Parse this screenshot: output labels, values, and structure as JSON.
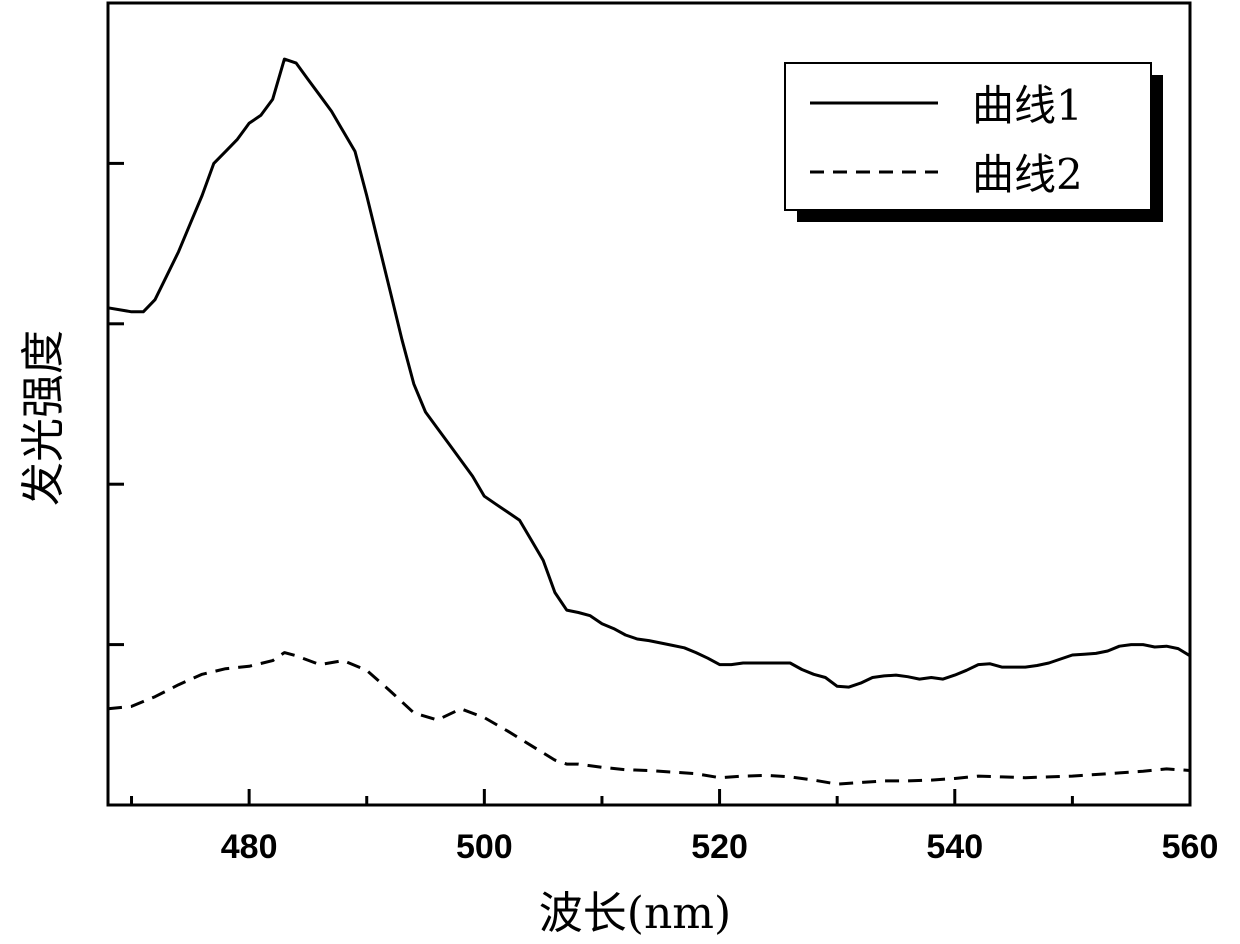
{
  "chart_data": {
    "type": "line",
    "xlabel": "波长(nm)",
    "ylabel": "发光强度",
    "xlim": [
      468,
      560
    ],
    "ylim": [
      0,
      100
    ],
    "x_ticks_major": [
      480,
      500,
      520,
      540,
      560
    ],
    "x_ticks_minor": [
      470,
      490,
      510,
      530,
      550
    ],
    "y_ticks": [
      20,
      40,
      60,
      80,
      100
    ],
    "y_tick_labels_shown": false,
    "grid": false,
    "legend_position": "top-right",
    "series": [
      {
        "name": "曲线1",
        "style": "solid",
        "x": [
          468,
          470,
          471,
          472,
          473,
          474,
          475,
          476,
          477,
          478,
          479,
          480,
          481,
          482,
          483,
          484,
          485,
          486,
          487,
          488,
          489,
          490,
          491,
          492,
          493,
          494,
          495,
          496,
          497,
          498,
          499,
          500,
          501,
          502,
          503,
          504,
          505,
          506,
          507,
          508,
          509,
          510,
          511,
          512,
          513,
          514,
          515,
          516,
          517,
          518,
          519,
          520,
          521,
          522,
          523,
          524,
          525,
          526,
          527,
          528,
          529,
          530,
          531,
          532,
          533,
          534,
          535,
          536,
          537,
          538,
          539,
          540,
          541,
          542,
          543,
          544,
          545,
          546,
          547,
          548,
          549,
          550,
          551,
          552,
          553,
          554,
          555,
          556,
          557,
          558,
          559,
          560
        ],
        "y": [
          62,
          61.5,
          61.5,
          63,
          66,
          69,
          72.5,
          76,
          80,
          81.5,
          83,
          85,
          86,
          88,
          93,
          92.5,
          90.5,
          88.5,
          86.5,
          84,
          81.5,
          76,
          70,
          64,
          58,
          52.5,
          49,
          47,
          45,
          43,
          41,
          38.5,
          37.5,
          36.5,
          35.5,
          33,
          30.5,
          26.5,
          24.3,
          24,
          23.6,
          22.6,
          22,
          21.2,
          20.7,
          20.5,
          20.2,
          19.9,
          19.6,
          19,
          18.3,
          17.5,
          17.5,
          17.7,
          17.7,
          17.7,
          17.7,
          17.7,
          16.9,
          16.3,
          15.9,
          14.8,
          14.7,
          15.2,
          15.9,
          16.1,
          16.2,
          16.0,
          15.7,
          15.9,
          15.7,
          16.2,
          16.8,
          17.5,
          17.6,
          17.2,
          17.2,
          17.2,
          17.4,
          17.7,
          18.2,
          18.7,
          18.8,
          18.9,
          19.2,
          19.8,
          20.0,
          20.0,
          19.7,
          19.8,
          19.5,
          18.6
        ]
      },
      {
        "name": "曲线2",
        "style": "dashed",
        "x": [
          468,
          470,
          472,
          474,
          476,
          478,
          480,
          482,
          483,
          484,
          486,
          488,
          490,
          492,
          494,
          496,
          498,
          500,
          502,
          504,
          506,
          507,
          508,
          510,
          512,
          514,
          516,
          518,
          520,
          522,
          524,
          526,
          528,
          530,
          532,
          534,
          536,
          538,
          540,
          542,
          544,
          546,
          548,
          550,
          552,
          554,
          556,
          558,
          560
        ],
        "y": [
          12,
          12.3,
          13.5,
          15,
          16.3,
          17,
          17.3,
          18,
          19,
          18.6,
          17.5,
          18,
          16.8,
          14.2,
          11.5,
          10.6,
          12,
          10.9,
          9.2,
          7.4,
          5.6,
          5.1,
          5.1,
          4.7,
          4.4,
          4.3,
          4.1,
          3.9,
          3.4,
          3.6,
          3.7,
          3.5,
          3.1,
          2.6,
          2.8,
          3.0,
          3.0,
          3.1,
          3.3,
          3.6,
          3.5,
          3.4,
          3.5,
          3.6,
          3.8,
          4.0,
          4.2,
          4.5,
          4.3
        ]
      }
    ]
  }
}
